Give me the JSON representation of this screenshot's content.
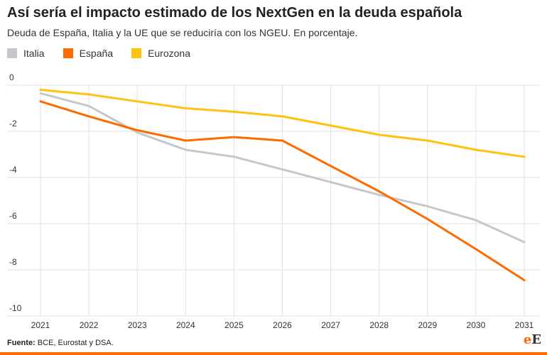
{
  "chart_data": {
    "type": "line",
    "title": "Así sería el impacto estimado de los NextGen en la deuda española",
    "subtitle": "Deuda de España, Italia y la UE que se reduciría con los NGEU. En porcentaje.",
    "x": [
      "2021",
      "2022",
      "2023",
      "2024",
      "2025",
      "2026",
      "2027",
      "2028",
      "2029",
      "2030",
      "2031"
    ],
    "ylim": [
      -10,
      0
    ],
    "yticks": [
      "0",
      "-2",
      "-4",
      "-6",
      "-8",
      "-10"
    ],
    "ytick_values": [
      0,
      -2,
      -4,
      -6,
      -8,
      -10
    ],
    "grid": true,
    "legend_position": "top-left",
    "series": [
      {
        "name": "Italia",
        "color": "#c4c8cd",
        "values": [
          -0.35,
          -0.9,
          -2.05,
          -2.8,
          -3.1,
          -3.65,
          -4.2,
          -4.75,
          -5.25,
          -5.85,
          -6.8
        ]
      },
      {
        "name": "España",
        "color": "#ff6a00",
        "values": [
          -0.7,
          -1.35,
          -1.95,
          -2.4,
          -2.25,
          -2.4,
          -3.5,
          -4.6,
          -5.8,
          -7.1,
          -8.45
        ]
      },
      {
        "name": "Eurozona",
        "color": "#ffc20e",
        "values": [
          -0.2,
          -0.4,
          -0.7,
          -1.0,
          -1.15,
          -1.35,
          -1.75,
          -2.15,
          -2.4,
          -2.8,
          -3.1
        ]
      }
    ]
  },
  "source": {
    "label": "Fuente:",
    "text": "BCE, Eurostat y DSA."
  },
  "logo": {
    "e": "e",
    "E": "E"
  }
}
